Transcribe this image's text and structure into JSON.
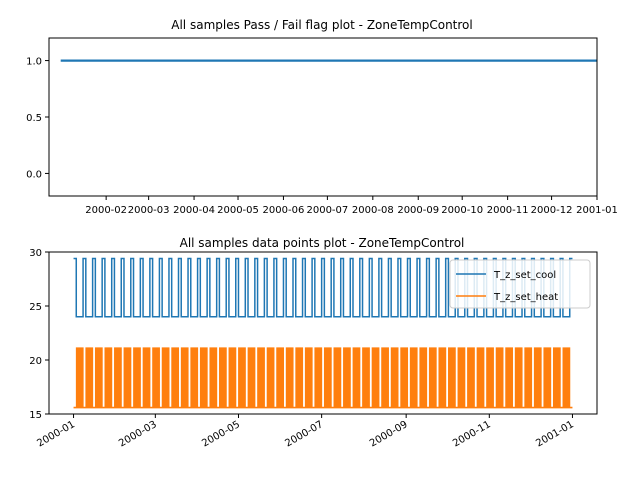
{
  "chart_data": [
    {
      "type": "line",
      "title": "All samples Pass / Fail flag plot - ZoneTempControl",
      "xlabel": "",
      "ylabel": "",
      "x_range": [
        "2000-01-01",
        "2001-01-01"
      ],
      "ylim": [
        -0.2,
        1.2
      ],
      "x_ticks": [
        "2000-02",
        "2000-03",
        "2000-04",
        "2000-05",
        "2000-06",
        "2000-07",
        "2000-08",
        "2000-09",
        "2000-10",
        "2000-11",
        "2000-12",
        "2001-01"
      ],
      "y_ticks": [
        "0.0",
        "0.5",
        "1.0"
      ],
      "series": [
        {
          "color": "#1f77b4",
          "x": [
            "2000-01-01",
            "2001-01-01"
          ],
          "y": [
            1.0,
            1.0
          ]
        }
      ],
      "grid": false,
      "legend": "none"
    },
    {
      "type": "line",
      "title": "All samples data points plot - ZoneTempControl",
      "xlabel": "",
      "ylabel": "",
      "x_range": [
        "2000-01-01",
        "2001-01-01"
      ],
      "ylim": [
        15,
        30
      ],
      "x_ticks": [
        "2000-01",
        "2000-03",
        "2000-05",
        "2000-07",
        "2000-09",
        "2000-11",
        "2001-01"
      ],
      "y_ticks": [
        "15",
        "20",
        "25",
        "30"
      ],
      "series": [
        {
          "name": "T_z_set_cool",
          "color": "#1f77b4",
          "period": "daily",
          "values": {
            "occupied": 24.0,
            "unoccupied": 29.4
          },
          "x_range": [
            "2000-01-01",
            "2000-12-31"
          ]
        },
        {
          "name": "T_z_set_heat",
          "color": "#ff7f0e",
          "period": "daily",
          "values": {
            "occupied": 21.1,
            "unoccupied": 15.6
          },
          "x_range": [
            "2000-01-01",
            "2000-12-31"
          ]
        }
      ],
      "grid": false,
      "legend": "top-right"
    }
  ]
}
